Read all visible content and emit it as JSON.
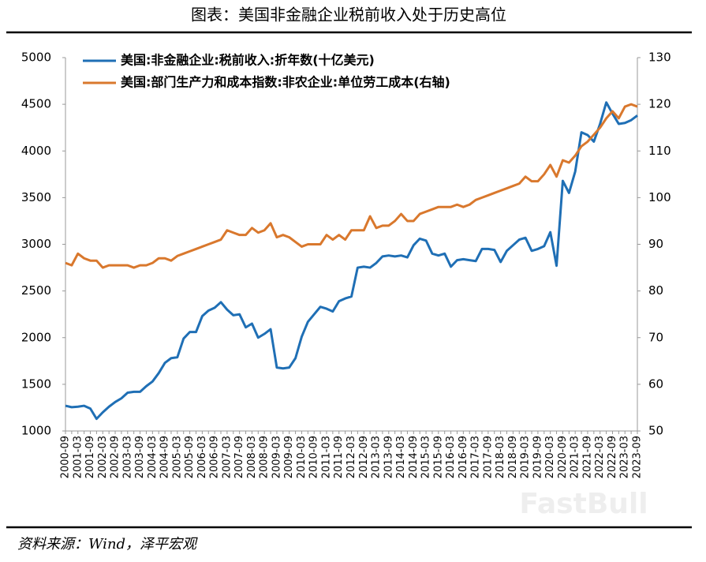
{
  "chart_data": {
    "type": "line",
    "title": "图表：美国非金融企业税前收入处于历史高位",
    "source": "资料来源：Wind，泽平宏观",
    "watermark": "FastBull",
    "legend": "upper left",
    "categories": [
      "2000-09",
      null,
      "2001-03",
      null,
      "2001-09",
      null,
      "2002-03",
      null,
      "2002-09",
      null,
      "2003-03",
      null,
      "2003-09",
      null,
      "2004-03",
      null,
      "2004-09",
      null,
      "2005-03",
      null,
      "2005-09",
      null,
      "2006-03",
      null,
      "2006-09",
      null,
      "2007-03",
      null,
      "2007-09",
      null,
      "2008-03",
      null,
      "2008-09",
      null,
      "2009-03",
      null,
      "2009-09",
      null,
      "2010-03",
      null,
      "2010-09",
      null,
      "2011-03",
      null,
      "2011-09",
      null,
      "2012-03",
      null,
      "2012-09",
      null,
      "2013-03",
      null,
      "2013-09",
      null,
      "2014-03",
      null,
      "2014-09",
      null,
      "2015-03",
      null,
      "2015-09",
      null,
      "2016-03",
      null,
      "2016-09",
      null,
      "2017-03",
      null,
      "2017-09",
      null,
      "2018-03",
      null,
      "2018-09",
      null,
      "2019-03",
      null,
      "2019-09",
      null,
      "2020-03",
      null,
      "2020-09",
      null,
      "2021-03",
      null,
      "2021-09",
      null,
      "2022-03",
      null,
      "2022-09",
      null,
      "2023-03",
      null,
      "2023-09"
    ],
    "series": [
      {
        "name": "美国:非金融企业:税前收入:折年数(十亿美元)",
        "color": "#1f6fb5",
        "values": [
          1270,
          1255,
          1260,
          1270,
          1240,
          1130,
          1200,
          1260,
          1310,
          1350,
          1410,
          1420,
          1420,
          1480,
          1530,
          1620,
          1730,
          1780,
          1790,
          1990,
          2060,
          2060,
          2230,
          2290,
          2320,
          2380,
          2300,
          2240,
          2250,
          2110,
          2150,
          2000,
          2040,
          2090,
          1680,
          1670,
          1680,
          1780,
          2010,
          2170,
          2250,
          2330,
          2310,
          2280,
          2390,
          2420,
          2440,
          2750,
          2760,
          2750,
          2800,
          2870,
          2880,
          2870,
          2880,
          2860,
          2990,
          3060,
          3040,
          2900,
          2880,
          2900,
          2760,
          2830,
          2840,
          2830,
          2820,
          2950,
          2950,
          2940,
          2810,
          2930,
          2990,
          3050,
          3070,
          2930,
          2950,
          2980,
          3130,
          2770,
          3680,
          3550,
          3780,
          4200,
          4170,
          4100,
          4290,
          4520,
          4400,
          4290,
          4300,
          4330,
          4380
        ]
      },
      {
        "name": "美国:部门生产力和成本指数:非农企业:单位劳工成本(右轴)",
        "color": "#d9782d",
        "axis": "y2",
        "values": [
          86,
          85.5,
          88,
          87,
          86.5,
          86.5,
          85,
          85.5,
          85.5,
          85.5,
          85.5,
          85,
          85.5,
          85.5,
          86,
          87,
          87,
          86.5,
          87.5,
          88,
          88.5,
          89,
          89.5,
          90,
          90.5,
          91,
          93,
          92.5,
          92,
          92,
          93.5,
          92.5,
          93,
          94.5,
          91.5,
          92,
          91.5,
          90.5,
          89.5,
          90,
          90,
          90,
          92,
          91,
          92,
          91,
          93,
          93,
          93,
          96,
          93.5,
          94,
          94,
          95,
          96.5,
          95,
          95,
          96.5,
          97,
          97.5,
          98,
          98,
          98,
          98.5,
          98,
          98.5,
          99.5,
          100,
          100.5,
          101,
          101.5,
          102,
          102.5,
          103,
          104.5,
          103.5,
          103.5,
          105,
          107,
          104.5,
          108,
          107.5,
          109,
          111,
          112,
          113.5,
          115,
          117,
          118.5,
          117,
          119.5,
          120,
          119.5
        ]
      }
    ],
    "ylim": [
      1000,
      5000
    ],
    "yticks": [
      1000,
      1500,
      2000,
      2500,
      3000,
      3500,
      4000,
      4500,
      5000
    ],
    "y2lim": [
      50,
      130
    ],
    "y2ticks": [
      50,
      60,
      70,
      80,
      90,
      100,
      110,
      120,
      130
    ]
  }
}
